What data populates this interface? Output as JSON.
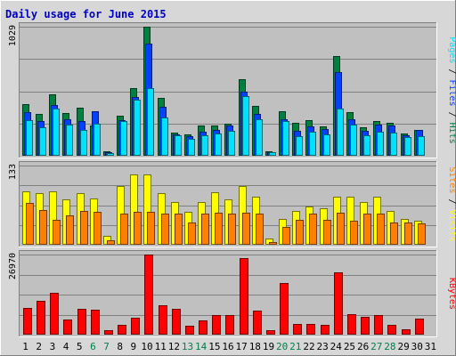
{
  "chart_data": {
    "type": "bar",
    "title": "Daily usage for June 2015",
    "categories": [
      "1",
      "2",
      "3",
      "4",
      "5",
      "6",
      "7",
      "8",
      "9",
      "10",
      "11",
      "12",
      "13",
      "14",
      "15",
      "16",
      "17",
      "18",
      "19",
      "20",
      "21",
      "22",
      "23",
      "24",
      "25",
      "26",
      "27",
      "28",
      "29",
      "30",
      "31"
    ],
    "weekend_days": [
      "6",
      "7",
      "13",
      "14",
      "20",
      "21",
      "27",
      "28"
    ],
    "panels": [
      {
        "id": "pages-files-hits",
        "ymax_label": "1029",
        "ymax": 1029,
        "series": [
          {
            "name": "Hits",
            "color": "#008040",
            "values": [
              414,
              330,
              491,
              344,
              380,
              240,
              35,
              322,
              539,
              1029,
              458,
              185,
              172,
              243,
              241,
              254,
              609,
              395,
              36,
              356,
              260,
              283,
              237,
              793,
              351,
              228,
              276,
              261,
              176,
              205,
              0
            ]
          },
          {
            "name": "Files",
            "color": "#0040ff",
            "values": [
              350,
              274,
              404,
              292,
              274,
              355,
              25,
              284,
              466,
              892,
              391,
              173,
              153,
              191,
              205,
              240,
              513,
              331,
              26,
              290,
              198,
              231,
              212,
              664,
              292,
              200,
              245,
              242,
              164,
              208,
              0
            ]
          },
          {
            "name": "Pages",
            "color": "#00e0ff",
            "values": [
              284,
              226,
              374,
              246,
              206,
              255,
              18,
              280,
              444,
              536,
              303,
              164,
              136,
              164,
              175,
              199,
              474,
              294,
              26,
              280,
              156,
              195,
              172,
              375,
              246,
              166,
              194,
              182,
              150,
              158,
              0
            ]
          }
        ]
      },
      {
        "id": "visits-sites",
        "ymax_label": "133",
        "ymax": 133,
        "series": [
          {
            "name": "Visits",
            "color": "#ffff00",
            "values": [
              90,
              87,
              90,
              76,
              87,
              77,
              15,
              98,
              118,
              118,
              87,
              72,
              56,
              71,
              88,
              76,
              98,
              80,
              11,
              44,
              57,
              65,
              61,
              80,
              80,
              71,
              80,
              57,
              44,
              41,
              0
            ]
          },
          {
            "name": "Sites",
            "color": "#ff8000",
            "values": [
              70,
              58,
              42,
              50,
              57,
              56,
              7,
              52,
              55,
              55,
              52,
              52,
              38,
              52,
              54,
              52,
              54,
              53,
              5,
              30,
              42,
              52,
              42,
              54,
              40,
              52,
              53,
              38,
              37,
              36,
              0
            ]
          }
        ]
      },
      {
        "id": "kbytes",
        "ymax_label": "26970",
        "ymax": 26970,
        "series": [
          {
            "name": "KBytes",
            "color": "#ff0000",
            "values": [
              8960,
              11390,
              14210,
              5140,
              8780,
              8430,
              1630,
              3320,
              5810,
              26970,
              9810,
              8780,
              2930,
              4660,
              6480,
              6640,
              25690,
              8040,
              1640,
              17270,
              3640,
              3660,
              3320,
              20910,
              7040,
              6140,
              6570,
              3170,
              1790,
              5310,
              0
            ]
          }
        ]
      }
    ],
    "right_labels": [
      {
        "parts": [
          {
            "text": "Pages",
            "color": "#00e0ff"
          },
          {
            "text": " / ",
            "color": "#000000"
          },
          {
            "text": "Files",
            "color": "#0040ff"
          },
          {
            "text": " / ",
            "color": "#000000"
          },
          {
            "text": "Hits",
            "color": "#008040"
          }
        ]
      },
      {
        "parts": [
          {
            "text": "Sites",
            "color": "#ff8000"
          },
          {
            "text": " / ",
            "color": "#000000"
          },
          {
            "text": "Visits",
            "color": "#ffff00"
          }
        ]
      },
      {
        "parts": [
          {
            "text": "KBytes",
            "color": "#ff0000"
          }
        ]
      }
    ],
    "colors": {
      "title": "#0000c0",
      "plot_bg": "#c0c0c0",
      "page_bg": "#d7d7d7",
      "weekday_label": "#000000",
      "weekend_label": "#00804a",
      "grid": "#808080"
    },
    "grid": true
  }
}
